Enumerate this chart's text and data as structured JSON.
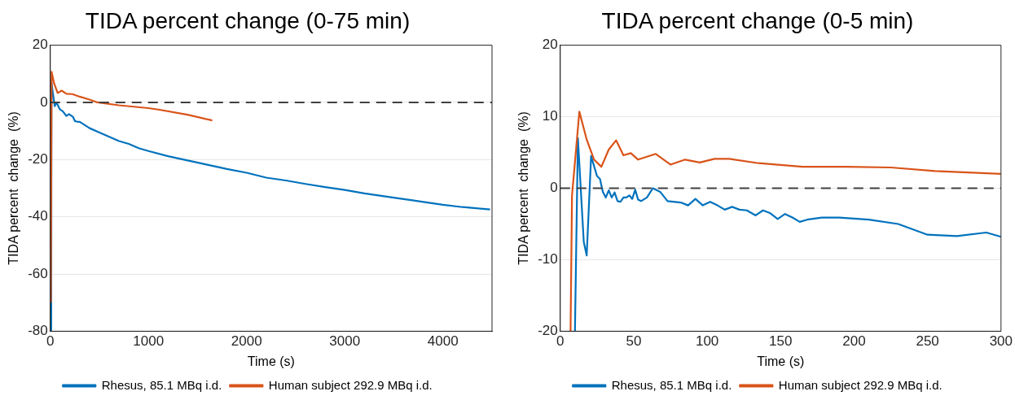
{
  "chart_data": [
    {
      "type": "line",
      "title": "TIDA percent change (0-75 min)",
      "xlabel": "Time (s)",
      "ylabel": "TIDA percent  change  (%)",
      "xlim": [
        0,
        4500
      ],
      "xticks": [
        0,
        1000,
        2000,
        3000,
        4000
      ],
      "ylim": [
        -80,
        20
      ],
      "yticks": [
        -80,
        -60,
        -40,
        -20,
        0,
        20
      ],
      "grid": "y",
      "legend": "bottom",
      "marker": "none",
      "ref_lines": [
        {
          "axis": "y",
          "value": 0,
          "color": "#404040",
          "line_style": "dashed"
        }
      ],
      "series": [
        {
          "name": "Rhesus, 85.1 MBq i.d.",
          "color": "#0072bd",
          "x": [
            9,
            12,
            21,
            45,
            63,
            97,
            127,
            163,
            190,
            230,
            250,
            270,
            300,
            400,
            500,
            600,
            700,
            800,
            900,
            1000,
            1200,
            1400,
            1600,
            1800,
            2000,
            2200,
            2400,
            2600,
            2800,
            3000,
            3200,
            3400,
            3600,
            3800,
            4000,
            4200,
            4480
          ],
          "values": [
            -80,
            7,
            4.5,
            -1.3,
            0,
            -2.4,
            -3.1,
            -4.7,
            -4.1,
            -5.0,
            -6.5,
            -6.7,
            -6.8,
            -9,
            -10.5,
            -12,
            -13.5,
            -14.5,
            -16,
            -17,
            -18.8,
            -20.3,
            -21.8,
            -23.3,
            -24.6,
            -26.3,
            -27.3,
            -28.5,
            -29.6,
            -30.6,
            -31.8,
            -32.8,
            -33.8,
            -34.8,
            -35.8,
            -36.6,
            -37.4
          ]
        },
        {
          "name": "Human subject 292.9 MBq i.d.",
          "color": "#d95319",
          "x": [
            5,
            13,
            38,
            75,
            115,
            165,
            225,
            300,
            400,
            480,
            700,
            1000,
            1100,
            1400,
            1650
          ],
          "values": [
            -70,
            10.7,
            6.7,
            3.3,
            4.1,
            3.0,
            2.9,
            2.0,
            1.0,
            0,
            -1,
            -2,
            -2.5,
            -4.3,
            -6.3
          ]
        }
      ]
    },
    {
      "type": "line",
      "title": "TIDA percent change (0-5 min)",
      "xlabel": "Time (s)",
      "ylabel": "TIDA percent  change  (%)",
      "xlim": [
        0,
        300
      ],
      "xticks": [
        0,
        50,
        100,
        150,
        200,
        250,
        300
      ],
      "ylim": [
        -20,
        20
      ],
      "yticks": [
        -20,
        -10,
        0,
        10,
        20
      ],
      "grid": "y",
      "legend": "bottom",
      "marker": "none",
      "ref_lines": [
        {
          "axis": "y",
          "value": 0,
          "color": "#404040",
          "line_style": "dashed"
        }
      ],
      "series": [
        {
          "name": "Rhesus, 85.1 MBq i.d.",
          "color": "#0072bd",
          "x": [
            10,
            12,
            16,
            18,
            21,
            25,
            27,
            29,
            31,
            33,
            35,
            37,
            39,
            41,
            43,
            45,
            47,
            49,
            51,
            53,
            55,
            59,
            63,
            68,
            73,
            82,
            87,
            92,
            97,
            102,
            107,
            112,
            117,
            122,
            127,
            133,
            138,
            143,
            148,
            153,
            158,
            163,
            168,
            178,
            190,
            210,
            230,
            250,
            270,
            290,
            300
          ],
          "values": [
            -20,
            7,
            -7.5,
            -9.4,
            4.5,
            1.7,
            1.3,
            -0.5,
            -1.3,
            -0.3,
            -1.3,
            -0.6,
            -1.8,
            -1.9,
            -1.3,
            -1.3,
            -1.0,
            -1.5,
            -0.2,
            -1.6,
            -1.8,
            -1.3,
            0,
            -0.5,
            -1.8,
            -2.0,
            -2.4,
            -1.5,
            -2.4,
            -1.9,
            -2.4,
            -3.0,
            -2.6,
            -3.0,
            -3.1,
            -3.8,
            -3.1,
            -3.5,
            -4.3,
            -3.6,
            -4.1,
            -4.7,
            -4.4,
            -4.1,
            -4.1,
            -4.4,
            -5.0,
            -6.5,
            -6.7,
            -6.2,
            -6.8
          ]
        },
        {
          "name": "Human subject 292.9 MBq i.d.",
          "color": "#d95319",
          "x": [
            7,
            8,
            13,
            18,
            23,
            28,
            33,
            38,
            43,
            48,
            53,
            65,
            75,
            85,
            95,
            105,
            115,
            135,
            165,
            195,
            225,
            255,
            300
          ],
          "values": [
            -20,
            -1,
            10.7,
            6.8,
            4,
            3,
            5.4,
            6.7,
            4.6,
            4.9,
            4.0,
            4.8,
            3.3,
            4.0,
            3.6,
            4.1,
            4.1,
            3.5,
            3.0,
            3.0,
            2.9,
            2.4,
            2.0
          ]
        }
      ]
    }
  ]
}
